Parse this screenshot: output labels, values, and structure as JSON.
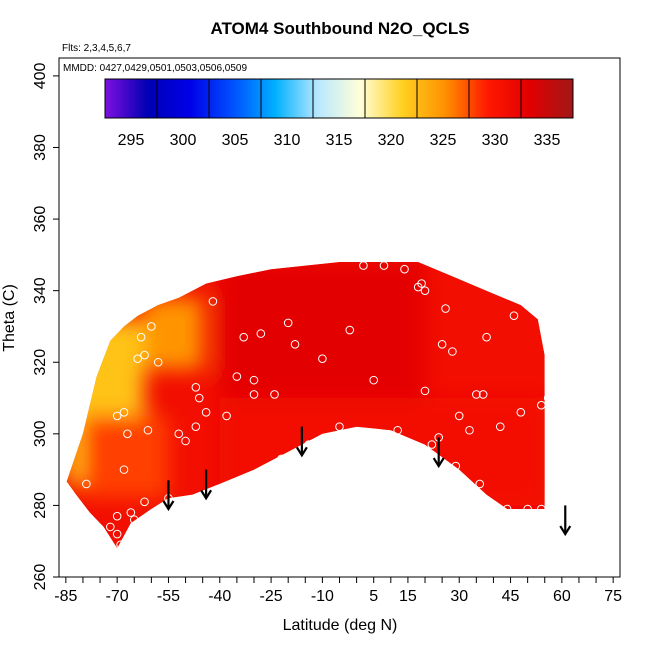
{
  "chart_data": {
    "type": "heatmap",
    "title": "ATOM4 Southbound N2O_QCLS",
    "flights_note": "Flts: 2,3,4,5,6,7",
    "dates_note": "MMDD: 0427,0429,0501,0503,0506,0509",
    "xlabel": "Latitude (deg N)",
    "ylabel": "Theta (C)",
    "xlim": [
      -87,
      77
    ],
    "ylim": [
      260,
      405
    ],
    "x_ticks": [
      -85,
      -70,
      -55,
      -40,
      -25,
      -10,
      5,
      15,
      30,
      45,
      60,
      75
    ],
    "x_minor_ticks": [
      -80,
      -75,
      -65,
      -60,
      -50,
      -45,
      -35,
      -30,
      -20,
      -15,
      -5,
      0,
      10,
      20,
      25,
      35,
      40,
      50,
      55,
      65,
      70
    ],
    "y_ticks": [
      260,
      280,
      300,
      320,
      340,
      360,
      380,
      400
    ],
    "colorbar": {
      "ticks": [
        295,
        300,
        305,
        310,
        315,
        320,
        325,
        330,
        335
      ],
      "range": [
        292.5,
        337.5
      ],
      "units_unlabeled": true,
      "colors": [
        "#7f0fdf",
        "#0000b4",
        "#0000e8",
        "#0050ff",
        "#00b0ff",
        "#b8e8ff",
        "#ffffd8",
        "#ffd020",
        "#ff9000",
        "#ff1800",
        "#e00000",
        "#a01818"
      ]
    },
    "field": {
      "description_values": "N2O mixing ratio colour field vs latitude and theta",
      "top_boundary": [
        [
          -85,
          286
        ],
        [
          -80,
          300
        ],
        [
          -76,
          316
        ],
        [
          -72,
          326
        ],
        [
          -68,
          330
        ],
        [
          -64,
          333
        ],
        [
          -58,
          336
        ],
        [
          -52,
          338
        ],
        [
          -44,
          342
        ],
        [
          -35,
          344
        ],
        [
          -25,
          346
        ],
        [
          -15,
          347
        ],
        [
          -5,
          348
        ],
        [
          5,
          348
        ],
        [
          18,
          348
        ],
        [
          28,
          344
        ],
        [
          38,
          340
        ],
        [
          48,
          336
        ],
        [
          53,
          332
        ],
        [
          55,
          322
        ],
        [
          55,
          300
        ]
      ],
      "bottom_boundary": [
        [
          -85,
          287
        ],
        [
          -82,
          283
        ],
        [
          -78,
          278
        ],
        [
          -74,
          274
        ],
        [
          -70,
          268
        ],
        [
          -66,
          275
        ],
        [
          -60,
          279
        ],
        [
          -55,
          282
        ],
        [
          -48,
          283
        ],
        [
          -40,
          286
        ],
        [
          -30,
          290
        ],
        [
          -20,
          295
        ],
        [
          -10,
          300
        ],
        [
          0,
          302
        ],
        [
          10,
          301
        ],
        [
          20,
          297
        ],
        [
          30,
          290
        ],
        [
          38,
          283
        ],
        [
          44,
          279
        ],
        [
          55,
          279
        ]
      ],
      "regions": [
        {
          "x": [
            -85,
            -62
          ],
          "y": [
            286,
            332
          ],
          "value": 322
        },
        {
          "x": [
            -62,
            -45
          ],
          "y": [
            318,
            338
          ],
          "value": 325
        },
        {
          "x": [
            -80,
            -55
          ],
          "y": [
            282,
            305
          ],
          "value": 328
        },
        {
          "x": [
            -40,
            20
          ],
          "y": [
            310,
            348
          ],
          "value": 333
        },
        {
          "x": [
            -40,
            55
          ],
          "y": [
            280,
            310
          ],
          "value": 331
        }
      ]
    },
    "samples": [
      [
        -86,
        287
      ],
      [
        -79,
        286
      ],
      [
        -72,
        274
      ],
      [
        -70,
        277
      ],
      [
        -70,
        272
      ],
      [
        -69,
        269
      ],
      [
        -68,
        290
      ],
      [
        -67,
        300
      ],
      [
        -68,
        306
      ],
      [
        -70,
        305
      ],
      [
        -66,
        278
      ],
      [
        -65,
        276
      ],
      [
        -62,
        281
      ],
      [
        -61,
        301
      ],
      [
        -64,
        321
      ],
      [
        -62,
        322
      ],
      [
        -63,
        327
      ],
      [
        -60,
        330
      ],
      [
        -58,
        320
      ],
      [
        -55,
        282
      ],
      [
        -52,
        300
      ],
      [
        -50,
        298
      ],
      [
        -47,
        302
      ],
      [
        -47,
        313
      ],
      [
        -46,
        310
      ],
      [
        -44,
        306
      ],
      [
        -42,
        337
      ],
      [
        -38,
        305
      ],
      [
        -35,
        316
      ],
      [
        -33,
        327
      ],
      [
        -30,
        311
      ],
      [
        -30,
        315
      ],
      [
        -28,
        328
      ],
      [
        -27,
        289
      ],
      [
        -24,
        311
      ],
      [
        -22,
        293
      ],
      [
        -20,
        331
      ],
      [
        -18,
        325
      ],
      [
        -16,
        295
      ],
      [
        -14,
        297
      ],
      [
        -10,
        321
      ],
      [
        -5,
        302
      ],
      [
        -2,
        329
      ],
      [
        2,
        347
      ],
      [
        3,
        300
      ],
      [
        5,
        315
      ],
      [
        8,
        347
      ],
      [
        12,
        301
      ],
      [
        14,
        346
      ],
      [
        18,
        341
      ],
      [
        19,
        342
      ],
      [
        20,
        340
      ],
      [
        20,
        312
      ],
      [
        22,
        297
      ],
      [
        24,
        299
      ],
      [
        25,
        325
      ],
      [
        26,
        335
      ],
      [
        28,
        323
      ],
      [
        29,
        291
      ],
      [
        30,
        305
      ],
      [
        33,
        301
      ],
      [
        35,
        311
      ],
      [
        36,
        286
      ],
      [
        37,
        311
      ],
      [
        38,
        327
      ],
      [
        42,
        302
      ],
      [
        44,
        279
      ],
      [
        46,
        333
      ],
      [
        48,
        306
      ],
      [
        50,
        279
      ],
      [
        54,
        279
      ],
      [
        54,
        308
      ],
      [
        56,
        310
      ],
      [
        55,
        333
      ]
    ],
    "flight_arrows": [
      {
        "x": -55,
        "y_start": 287,
        "y_end": 279
      },
      {
        "x": -44,
        "y_start": 290,
        "y_end": 282
      },
      {
        "x": -16,
        "y_start": 302,
        "y_end": 294
      },
      {
        "x": 24,
        "y_start": 299,
        "y_end": 291
      },
      {
        "x": 61,
        "y_start": 280,
        "y_end": 272
      }
    ],
    "grid": false,
    "legend": "colorbar top"
  }
}
